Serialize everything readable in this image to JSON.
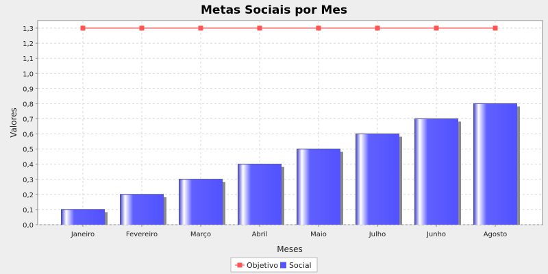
{
  "chart_data": {
    "type": "bar",
    "title": "Metas Sociais por Mes",
    "xlabel": "Meses",
    "ylabel": "Valores",
    "categories": [
      "Janeiro",
      "Fevereiro",
      "Março",
      "Abril",
      "Maio",
      "Julho",
      "Junho",
      "Agosto"
    ],
    "ylim": [
      0,
      1.35
    ],
    "yticks": [
      0.0,
      0.1,
      0.2,
      0.3,
      0.4,
      0.5,
      0.6,
      0.7,
      0.8,
      0.9,
      1.0,
      1.1,
      1.2,
      1.3
    ],
    "ytick_labels": [
      "0,0",
      "0,1",
      "0,2",
      "0,3",
      "0,4",
      "0,5",
      "0,6",
      "0,7",
      "0,8",
      "0,9",
      "1,0",
      "1,1",
      "1,2",
      "1,3"
    ],
    "grid": true,
    "legend_position": "bottom",
    "series": [
      {
        "name": "Objetivo",
        "kind": "line",
        "marker": "square",
        "color": "#ff5555",
        "values": [
          1.3,
          1.3,
          1.3,
          1.3,
          1.3,
          1.3,
          1.3,
          1.3
        ]
      },
      {
        "name": "Social",
        "kind": "bar",
        "color": "#5555ff",
        "values": [
          0.1,
          0.2,
          0.3,
          0.4,
          0.5,
          0.6,
          0.7,
          0.8
        ]
      }
    ]
  }
}
